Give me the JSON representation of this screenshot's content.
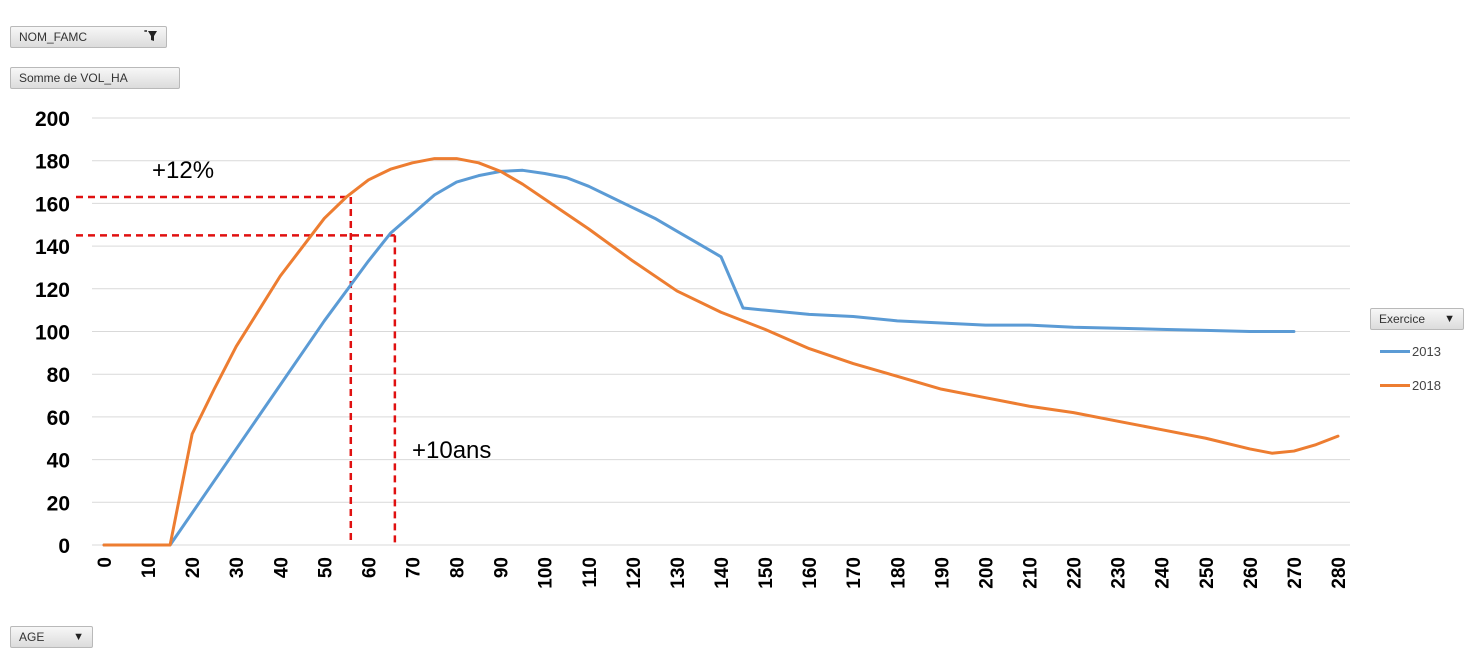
{
  "pivot": {
    "filter_field": "NOM_FAMC",
    "value_field": "Somme de VOL_HA",
    "axis_field": "AGE",
    "legend_field": "Exercice"
  },
  "icons": {
    "filter": "filter-icon",
    "dropdown": "dropdown-arrow-icon"
  },
  "colors": {
    "2013": "#5b9bd5",
    "2018": "#ed7d31",
    "annotation": "#e01010",
    "grid": "#d9d9d9"
  },
  "chart_data": {
    "type": "line",
    "title": "",
    "xlabel": "",
    "ylabel": "",
    "ylim": [
      0,
      200
    ],
    "xlim": [
      0,
      280
    ],
    "y_ticks": [
      0,
      20,
      40,
      60,
      80,
      100,
      120,
      140,
      160,
      180,
      200
    ],
    "x_ticks": [
      0,
      10,
      20,
      30,
      40,
      50,
      60,
      70,
      80,
      90,
      100,
      110,
      120,
      130,
      140,
      150,
      160,
      170,
      180,
      190,
      200,
      210,
      220,
      230,
      240,
      250,
      260,
      270,
      280
    ],
    "grid": "horizontal",
    "legend_position": "right",
    "series": [
      {
        "name": "2013",
        "x": [
          0,
          15,
          20,
          30,
          40,
          50,
          60,
          65,
          70,
          75,
          80,
          85,
          90,
          95,
          100,
          105,
          110,
          115,
          120,
          125,
          130,
          135,
          140,
          145,
          150,
          160,
          170,
          180,
          190,
          200,
          210,
          220,
          230,
          240,
          250,
          260,
          270
        ],
        "y": [
          0,
          0,
          15,
          45,
          75,
          105,
          133,
          146,
          155,
          164,
          170,
          173,
          175,
          175.5,
          174,
          172,
          168,
          163,
          158,
          153,
          147,
          141,
          135,
          111,
          110,
          108,
          107,
          105,
          104,
          103,
          103,
          102,
          101.5,
          101,
          100.5,
          100,
          100
        ]
      },
      {
        "name": "2018",
        "x": [
          0,
          15,
          20,
          25,
          30,
          40,
          50,
          55,
          60,
          65,
          70,
          75,
          80,
          85,
          90,
          95,
          100,
          110,
          120,
          130,
          140,
          150,
          160,
          170,
          180,
          190,
          200,
          210,
          220,
          230,
          240,
          250,
          260,
          265,
          270,
          275,
          280
        ],
        "y": [
          0,
          0,
          52,
          73,
          93,
          126,
          153,
          163,
          171,
          176,
          179,
          181,
          181,
          179,
          175,
          169,
          162,
          148,
          133,
          119,
          109,
          101,
          92,
          85,
          79,
          73,
          69,
          65,
          62,
          58,
          54,
          50,
          45,
          43,
          44,
          47,
          51
        ]
      }
    ],
    "annotations": [
      {
        "text": "+12%"
      },
      {
        "text": "+10ans"
      }
    ],
    "reference_lines": {
      "x_values": [
        56,
        66
      ],
      "y_values": [
        163,
        145
      ]
    }
  }
}
